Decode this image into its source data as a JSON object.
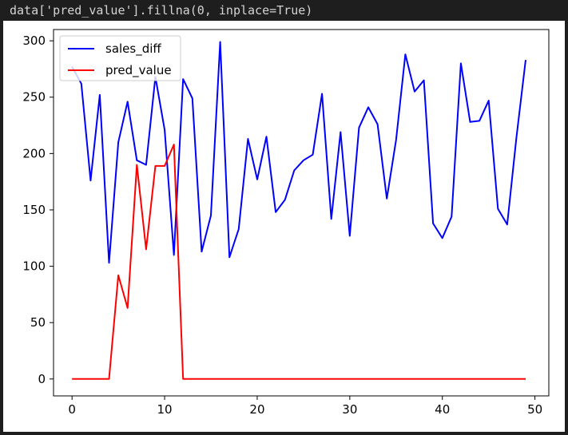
{
  "code_cell": {
    "text": "data['pred_value'].fillna(0, inplace=True)"
  },
  "chart_data": {
    "type": "line",
    "x": [
      0,
      1,
      2,
      3,
      4,
      5,
      6,
      7,
      8,
      9,
      10,
      11,
      12,
      13,
      14,
      15,
      16,
      17,
      18,
      19,
      20,
      21,
      22,
      23,
      24,
      25,
      26,
      27,
      28,
      29,
      30,
      31,
      32,
      33,
      34,
      35,
      36,
      37,
      38,
      39,
      40,
      41,
      42,
      43,
      44,
      45,
      46,
      47,
      48,
      49
    ],
    "xlim": [
      -2,
      51.5
    ],
    "ylim": [
      -15,
      310
    ],
    "xticks": [
      0,
      10,
      20,
      30,
      40,
      50
    ],
    "yticks": [
      0,
      50,
      100,
      150,
      200,
      250,
      300
    ],
    "grid": false,
    "legend_position": "upper-left",
    "series": [
      {
        "name": "sales_diff",
        "color": "#0000ff",
        "values": [
          277,
          262,
          176,
          252,
          103,
          210,
          246,
          194,
          190,
          268,
          221,
          110,
          266,
          249,
          113,
          145,
          299,
          108,
          133,
          213,
          177,
          215,
          148,
          159,
          185,
          194,
          199,
          253,
          142,
          219,
          127,
          223,
          241,
          226,
          160,
          212,
          288,
          255,
          265,
          138,
          125,
          144,
          280,
          228,
          229,
          247,
          151,
          137,
          214,
          283
        ]
      },
      {
        "name": "pred_value",
        "color": "#ff0000",
        "values": [
          0,
          0,
          0,
          0,
          0,
          92,
          63,
          190,
          115,
          189,
          189,
          208,
          0,
          0,
          0,
          0,
          0,
          0,
          0,
          0,
          0,
          0,
          0,
          0,
          0,
          0,
          0,
          0,
          0,
          0,
          0,
          0,
          0,
          0,
          0,
          0,
          0,
          0,
          0,
          0,
          0,
          0,
          0,
          0,
          0,
          0,
          0,
          0,
          0,
          0
        ]
      }
    ]
  }
}
